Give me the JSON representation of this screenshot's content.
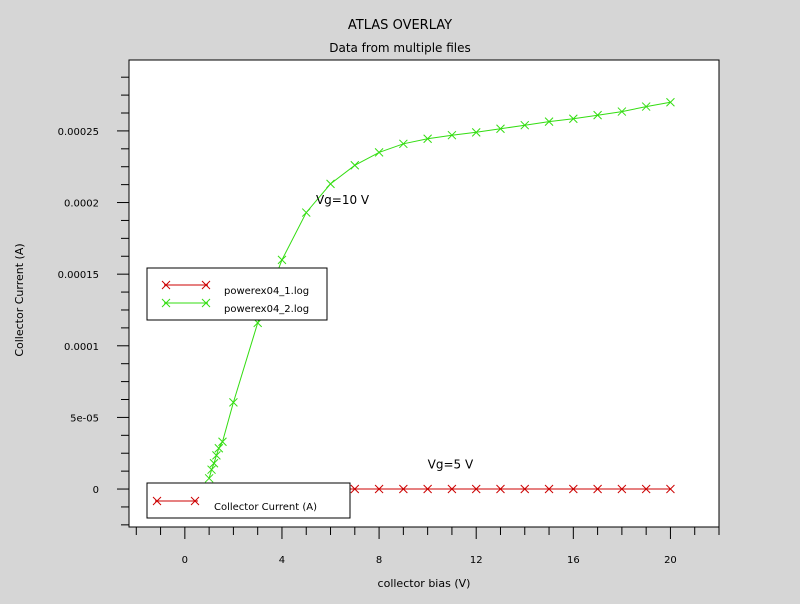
{
  "chart_data": {
    "type": "line",
    "title": "ATLAS OVERLAY",
    "subtitle": "Data from multiple files",
    "xlabel": "collector bias (V)",
    "ylabel": "Collector Current (A)",
    "xlim": [
      -2.3,
      22
    ],
    "ylim": [
      -2.65e-05,
      0.0002995
    ],
    "x_tick_values": [
      0,
      4,
      8,
      12,
      16,
      20
    ],
    "x_tick_labels": [
      "0",
      "4",
      "8",
      "12",
      "16",
      "20"
    ],
    "y_tick_values": [
      0,
      5e-05,
      0.0001,
      0.00015,
      0.0002,
      0.00025
    ],
    "y_tick_labels": [
      "0",
      "5e-05",
      "0.0001",
      "0.00015",
      "0.0002",
      "0.00025"
    ],
    "grid": false,
    "series": [
      {
        "name": "powerex04_1.log",
        "color": "#cc0000",
        "marker": "x",
        "x": [
          0,
          0.5,
          1,
          2,
          3,
          4,
          5,
          6,
          7,
          8,
          9,
          10,
          11,
          12,
          13,
          14,
          15,
          16,
          17,
          18,
          19,
          20
        ],
        "y": [
          0,
          0,
          0,
          0,
          0,
          0,
          0,
          0,
          0,
          0,
          0,
          0,
          0,
          0,
          0,
          0,
          0,
          0,
          0,
          0,
          0,
          0
        ]
      },
      {
        "name": "powerex04_2.log",
        "color": "#33dd11",
        "marker": "x",
        "x": [
          1.0,
          1.1,
          1.2,
          1.3,
          1.4,
          1.55,
          2,
          3,
          4,
          5,
          6,
          7,
          8,
          9,
          10,
          11,
          12,
          13,
          14,
          15,
          16,
          17,
          18,
          19,
          20
        ],
        "y": [
          7.5e-06,
          1.35e-05,
          1.8e-05,
          2.35e-05,
          2.85e-05,
          3.3e-05,
          6.05e-05,
          0.000116,
          0.00016,
          0.000193,
          0.000213,
          0.000226,
          0.000235,
          0.000241,
          0.0002445,
          0.000247,
          0.000249,
          0.0002515,
          0.000254,
          0.0002565,
          0.0002585,
          0.000261,
          0.0002635,
          0.000267,
          0.00027
        ]
      }
    ],
    "annotations": [
      {
        "text": "Vg=10 V",
        "x": 5.4,
        "y": 0.000199
      },
      {
        "text": "Vg=5 V",
        "x": 10.0,
        "y": 1.43e-05
      }
    ],
    "legend": {
      "placement": "left",
      "entries": [
        "powerex04_1.log",
        "powerex04_2.log"
      ]
    },
    "legend2": {
      "placement": "bottom-left",
      "entries": [
        "Collector Current (A)"
      ],
      "color": "#cc0000"
    }
  }
}
